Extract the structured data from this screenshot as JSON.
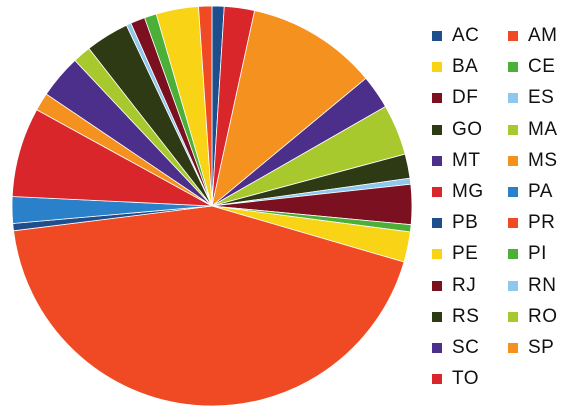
{
  "chart_data": {
    "type": "pie",
    "title": "",
    "legend_position": "right",
    "slices": [
      {
        "name": "AC",
        "value": 1.0,
        "color": "#1f4e8c"
      },
      {
        "name": "TO",
        "value": 2.5,
        "color": "#d9262b"
      },
      {
        "name": "SP",
        "value": 10.8,
        "color": "#f5911e"
      },
      {
        "name": "SC",
        "value": 2.8,
        "color": "#4c2f8a"
      },
      {
        "name": "RO",
        "value": 4.2,
        "color": "#a8c92d"
      },
      {
        "name": "RS",
        "value": 2.0,
        "color": "#2e3a14"
      },
      {
        "name": "RN",
        "value": 0.5,
        "color": "#8ec8ef"
      },
      {
        "name": "RJ",
        "value": 3.3,
        "color": "#7a1020"
      },
      {
        "name": "PI",
        "value": 0.6,
        "color": "#4caf37"
      },
      {
        "name": "PE",
        "value": 2.5,
        "color": "#f8d316"
      },
      {
        "name": "PR",
        "value": 44.5,
        "color": "#ef4a23"
      },
      {
        "name": "PB",
        "value": 0.6,
        "color": "#1f4e8c"
      },
      {
        "name": "PA",
        "value": 2.2,
        "color": "#2a80c9"
      },
      {
        "name": "MG",
        "value": 7.4,
        "color": "#d9262b"
      },
      {
        "name": "MS",
        "value": 1.5,
        "color": "#f5911e"
      },
      {
        "name": "MT",
        "value": 3.6,
        "color": "#4c2f8a"
      },
      {
        "name": "MA",
        "value": 1.5,
        "color": "#a8c92d"
      },
      {
        "name": "GO",
        "value": 3.6,
        "color": "#2e3a14"
      },
      {
        "name": "ES",
        "value": 0.4,
        "color": "#8ec8ef"
      },
      {
        "name": "DF",
        "value": 1.2,
        "color": "#7a1020"
      },
      {
        "name": "CE",
        "value": 1.0,
        "color": "#4caf37"
      },
      {
        "name": "BA",
        "value": 3.5,
        "color": "#f8d316"
      },
      {
        "name": "AM",
        "value": 1.1,
        "color": "#ef4a23"
      }
    ],
    "legend": [
      {
        "name": "AC",
        "color": "#1f4e8c"
      },
      {
        "name": "AM",
        "color": "#ef4a23"
      },
      {
        "name": "BA",
        "color": "#f8d316"
      },
      {
        "name": "CE",
        "color": "#4caf37"
      },
      {
        "name": "DF",
        "color": "#7a1020"
      },
      {
        "name": "ES",
        "color": "#8ec8ef"
      },
      {
        "name": "GO",
        "color": "#2e3a14"
      },
      {
        "name": "MA",
        "color": "#a8c92d"
      },
      {
        "name": "MT",
        "color": "#4c2f8a"
      },
      {
        "name": "MS",
        "color": "#f5911e"
      },
      {
        "name": "MG",
        "color": "#d9262b"
      },
      {
        "name": "PA",
        "color": "#2a80c9"
      },
      {
        "name": "PB",
        "color": "#1f4e8c"
      },
      {
        "name": "PR",
        "color": "#ef4a23"
      },
      {
        "name": "PE",
        "color": "#f8d316"
      },
      {
        "name": "PI",
        "color": "#4caf37"
      },
      {
        "name": "RJ",
        "color": "#7a1020"
      },
      {
        "name": "RN",
        "color": "#8ec8ef"
      },
      {
        "name": "RS",
        "color": "#2e3a14"
      },
      {
        "name": "RO",
        "color": "#a8c92d"
      },
      {
        "name": "SC",
        "color": "#4c2f8a"
      },
      {
        "name": "SP",
        "color": "#f5911e"
      },
      {
        "name": "TO",
        "color": "#d9262b"
      }
    ]
  }
}
